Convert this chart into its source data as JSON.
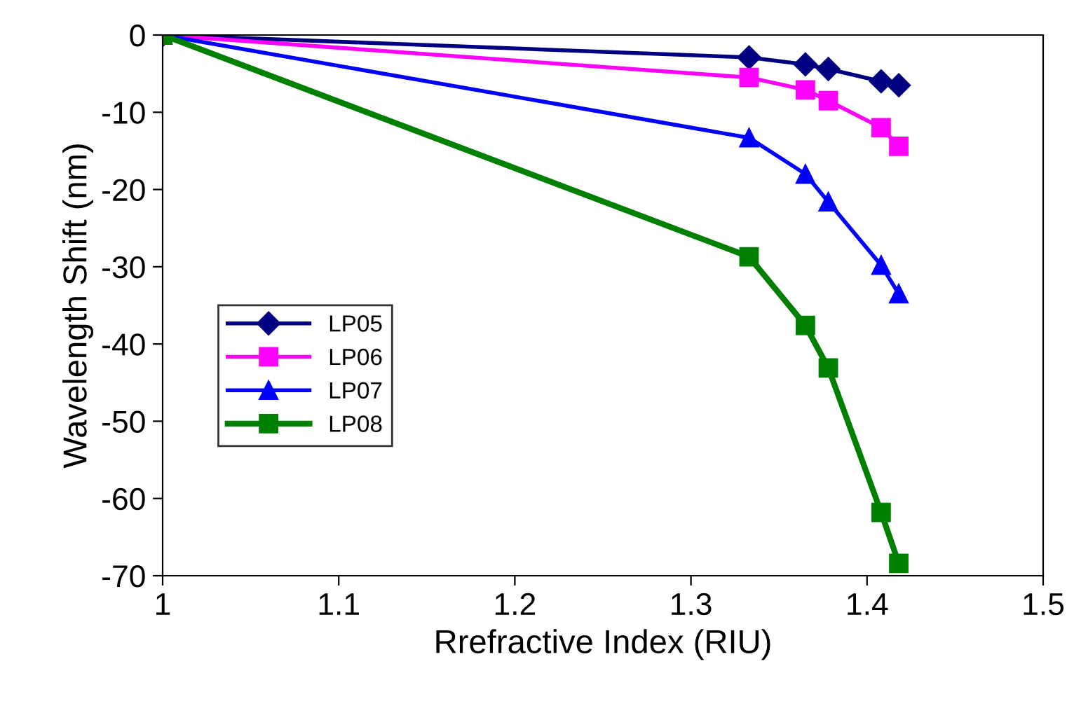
{
  "chart_data": {
    "type": "line",
    "xlabel": "Rrefractive Index (RIU)",
    "ylabel": "Wavelength Shift (nm)",
    "xlim": [
      1,
      1.5
    ],
    "xticks": [
      {
        "value": 1,
        "label": "1"
      },
      1.1,
      1.2,
      1.3,
      1.4,
      1.5
    ],
    "ylim": [
      -70,
      0
    ],
    "yticks": [
      -70,
      -60,
      -50,
      -40,
      -30,
      -20,
      -10,
      0
    ],
    "grid": false,
    "legend": "left",
    "series": [
      {
        "name": "LP05",
        "color": "#000080",
        "marker": "diamond",
        "x": [
          1.0,
          1.333,
          1.365,
          1.378,
          1.408,
          1.418
        ],
        "values": [
          0,
          -2.9,
          -3.8,
          -4.4,
          -6.0,
          -6.5
        ]
      },
      {
        "name": "LP06",
        "color": "#ff00ff",
        "marker": "square",
        "x": [
          1.0,
          1.333,
          1.365,
          1.378,
          1.408,
          1.418
        ],
        "values": [
          0,
          -5.5,
          -7.1,
          -8.5,
          -12.0,
          -14.4
        ]
      },
      {
        "name": "LP07",
        "color": "#0000ff",
        "marker": "triangle",
        "x": [
          1.0,
          1.333,
          1.365,
          1.378,
          1.408,
          1.418
        ],
        "values": [
          0,
          -13.3,
          -18.0,
          -21.6,
          -29.8,
          -33.5
        ]
      },
      {
        "name": "LP08",
        "color": "#008000",
        "marker": "square",
        "x": [
          1.0,
          1.333,
          1.365,
          1.378,
          1.408,
          1.418
        ],
        "values": [
          0,
          -28.7,
          -37.6,
          -43.1,
          -61.8,
          -68.4
        ]
      }
    ]
  }
}
